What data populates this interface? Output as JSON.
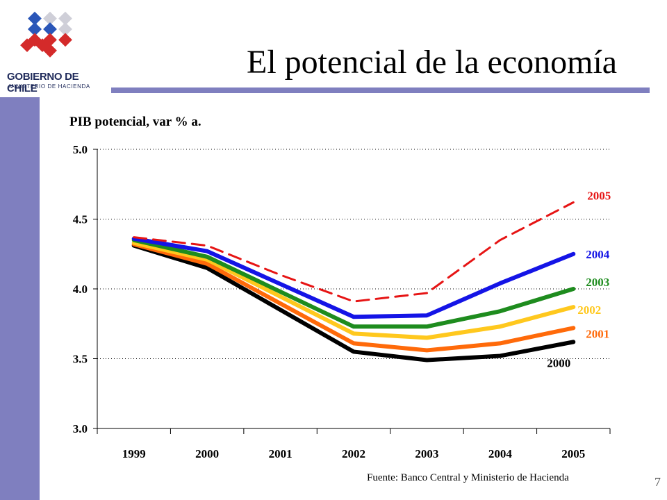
{
  "header": {
    "logo_text": "GOBIERNO DE CHILE",
    "logo_sub": "MINISTERIO DE HACIENDA",
    "title": "El potencial de la economía"
  },
  "footer": {
    "source": "Fuente: Banco Central y Ministerio de Hacienda",
    "page_number": "7"
  },
  "colors": {
    "sidebar": "#7f7fbf",
    "logo_blue": "#2a56b8",
    "logo_red": "#d42a2a",
    "logo_gray": "#cfcfd8"
  },
  "chart_data": {
    "type": "line",
    "title": "PIB potencial, var % a.",
    "xlabel": "",
    "ylabel": "",
    "x": [
      "1999",
      "2000",
      "2001",
      "2002",
      "2003",
      "2004",
      "2005"
    ],
    "ylim": [
      3.0,
      5.0
    ],
    "yticks": [
      "3.0",
      "3.5",
      "4.0",
      "4.5",
      "5.0"
    ],
    "grid": "horizontal dotted",
    "legend": "labels at line ends",
    "series": [
      {
        "name": "2000",
        "color": "#000000",
        "dashed": false,
        "x": [
          "1999",
          "2000",
          "2001",
          "2002",
          "2003",
          "2004",
          "2005"
        ],
        "values": [
          4.31,
          4.15,
          null,
          3.55,
          3.49,
          3.52,
          3.62
        ]
      },
      {
        "name": "2001",
        "color": "#ff6a0a",
        "dashed": false,
        "x": [
          "1999",
          "2000",
          "2001",
          "2002",
          "2003",
          "2004",
          "2005"
        ],
        "values": [
          4.32,
          4.18,
          null,
          3.61,
          3.56,
          3.61,
          3.72
        ]
      },
      {
        "name": "2002",
        "color": "#ffc81e",
        "dashed": false,
        "x": [
          "1999",
          "2000",
          "2001",
          "2002",
          "2003",
          "2004",
          "2005"
        ],
        "values": [
          4.33,
          4.21,
          null,
          3.68,
          3.65,
          3.73,
          3.87
        ]
      },
      {
        "name": "2003",
        "color": "#1e8c1e",
        "dashed": false,
        "x": [
          "1999",
          "2000",
          "2001",
          "2002",
          "2003",
          "2004",
          "2005"
        ],
        "values": [
          4.35,
          4.23,
          null,
          3.73,
          3.73,
          3.84,
          4.0
        ]
      },
      {
        "name": "2004",
        "color": "#1414e6",
        "dashed": false,
        "x": [
          "1999",
          "2000",
          "2001",
          "2002",
          "2003",
          "2004",
          "2005"
        ],
        "values": [
          4.36,
          4.27,
          null,
          3.8,
          3.81,
          4.04,
          4.25
        ]
      },
      {
        "name": "2005",
        "color": "#e61414",
        "dashed": true,
        "x": [
          "1999",
          "2000",
          "2001",
          "2002",
          "2003",
          "2004",
          "2005"
        ],
        "values": [
          4.37,
          4.31,
          4.1,
          3.91,
          3.97,
          4.35,
          4.62
        ]
      }
    ]
  }
}
